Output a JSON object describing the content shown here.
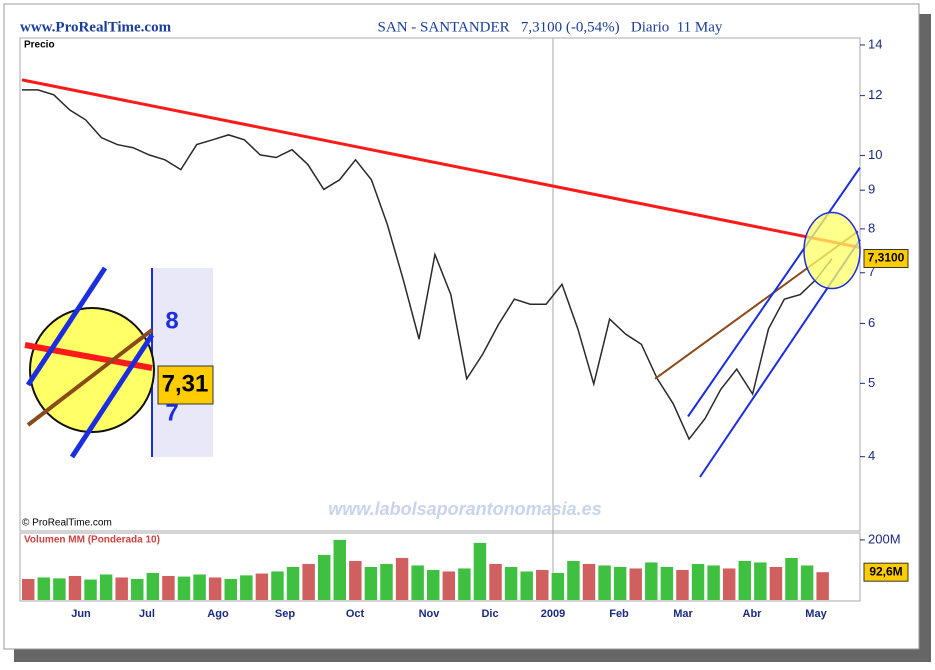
{
  "site": "www.ProRealTime.com",
  "title": "SAN - SANTANDER   7,3100 (-0,54%)   Diario  11 May",
  "copyright": "© ProRealTime.com",
  "watermark": "www.labolsaporantonomasia.es",
  "months": [
    "Jun",
    "Jul",
    "Ago",
    "Sep",
    "Oct",
    "Nov",
    "Dic",
    "2009",
    "Feb",
    "Mar",
    "Abr",
    "May"
  ],
  "inset_labels": [
    "8",
    "7,31",
    "7"
  ],
  "chart_data": [
    {
      "type": "line",
      "label": "Precio",
      "log": true,
      "color": "#2a2a2a",
      "values": [
        12.21,
        12.21,
        12.03,
        11.49,
        11.15,
        10.56,
        10.34,
        10.24,
        10.02,
        9.87,
        9.58,
        10.34,
        10.49,
        10.65,
        10.49,
        10.02,
        9.94,
        10.18,
        9.73,
        9.02,
        9.29,
        9.87,
        9.29,
        8.11,
        6.86,
        5.72,
        7.4,
        6.55,
        5.07,
        5.46,
        5.98,
        6.46,
        6.36,
        6.36,
        6.76,
        5.9,
        4.99,
        6.08,
        5.81,
        5.63,
        5.07,
        4.7,
        4.22,
        4.49,
        4.91,
        5.22,
        4.84,
        5.9,
        6.46,
        6.55,
        6.86,
        7.31
      ],
      "ylim": [
        3.2,
        14.3
      ],
      "yticks": [
        14,
        12,
        10,
        9,
        8,
        7,
        6,
        5,
        4
      ],
      "last_price": {
        "value": 7.31,
        "label": "7,3100"
      },
      "trendlines": [
        {
          "color": "#ff1a1a",
          "from": 12.59,
          "to": 7.56
        },
        {
          "color": "#8b4a1a",
          "from": 5.07,
          "to": 7.94
        },
        {
          "color": "#1a2ee0",
          "from": 4.52,
          "to": 9.64
        },
        {
          "color": "#1a2ee0",
          "from": 3.76,
          "to": 7.74
        }
      ]
    },
    {
      "type": "bar",
      "label": "Volumen MM (Ponderada 10)",
      "color": "#d06060",
      "values": [
        70,
        75,
        72,
        80,
        68,
        85,
        75,
        70,
        90,
        80,
        78,
        85,
        75,
        70,
        82,
        88,
        95,
        110,
        120,
        150,
        200,
        130,
        110,
        120,
        140,
        115,
        100,
        95,
        105,
        190,
        120,
        110,
        95,
        100,
        90,
        130,
        120,
        115,
        110,
        105,
        125,
        110,
        100,
        120,
        115,
        105,
        130,
        125,
        110,
        140,
        115,
        92.6
      ],
      "ylim": [
        0,
        223
      ],
      "yticks": [
        {
          "value": 200,
          "label": "200M"
        }
      ],
      "last_value": {
        "value": 92.6,
        "label": "92,6M"
      }
    }
  ]
}
